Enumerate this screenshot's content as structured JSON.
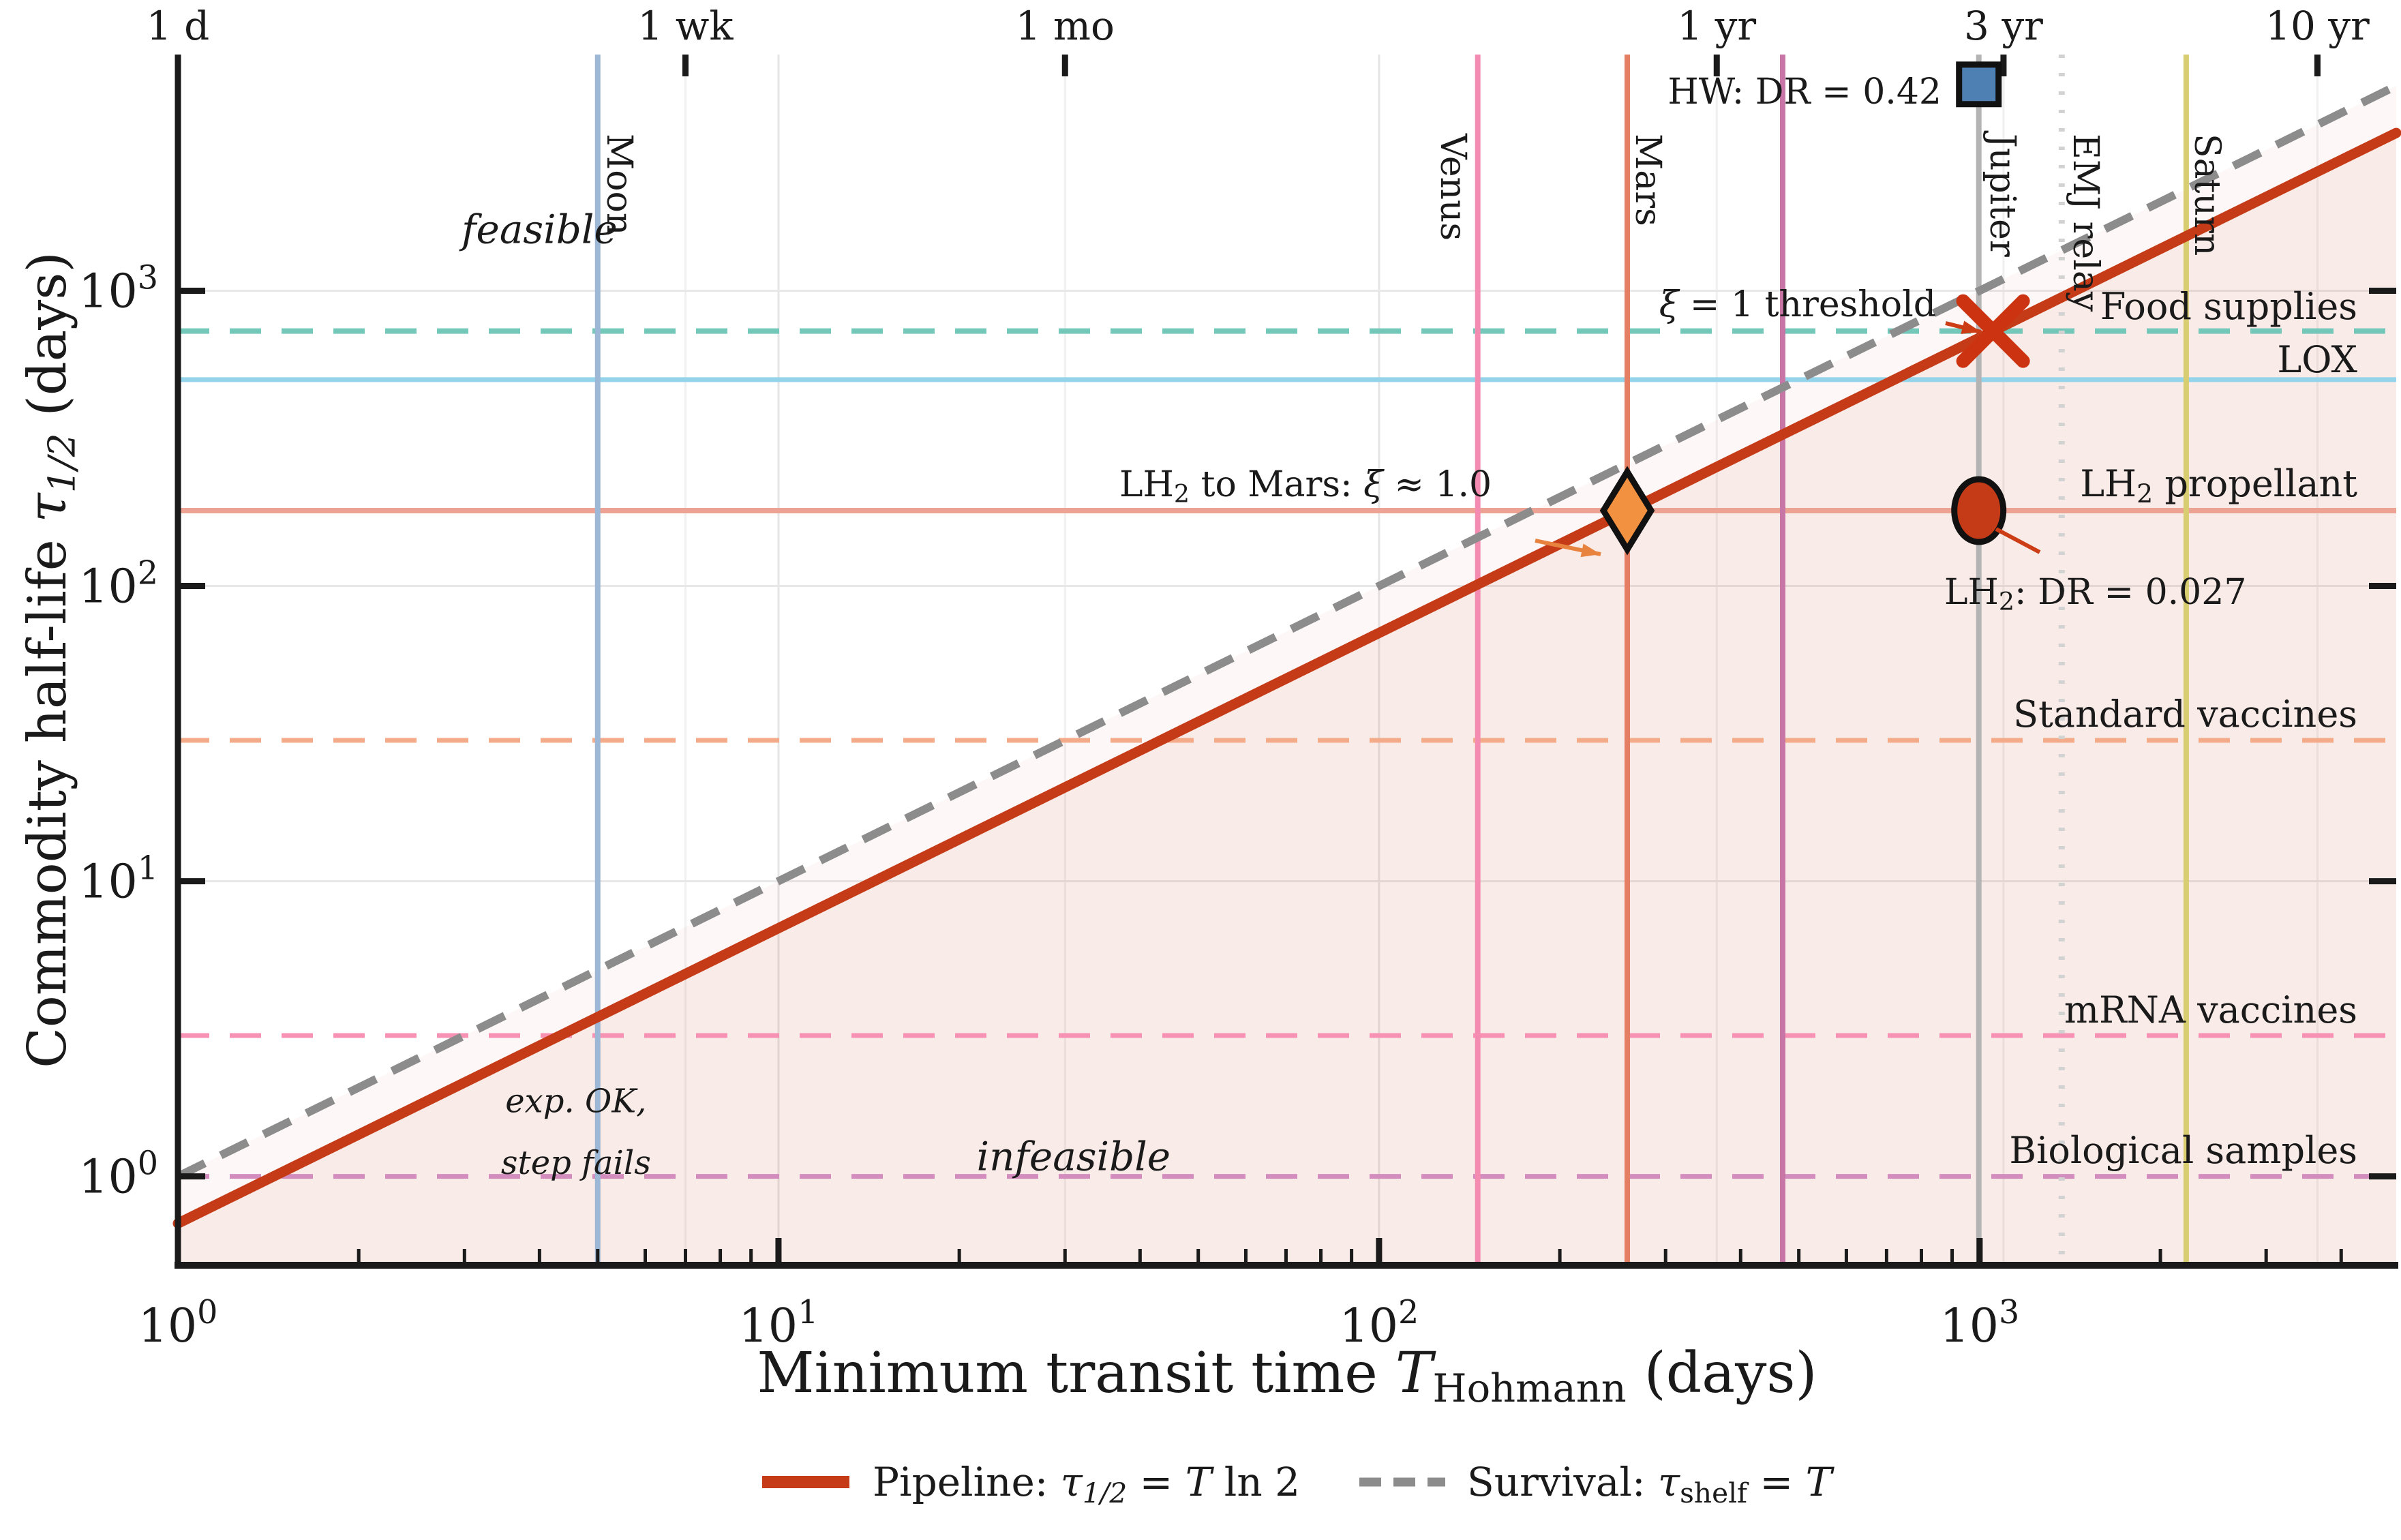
{
  "page": {
    "background": "#ffffff"
  },
  "chart_data": {
    "type": "line",
    "title": "",
    "xlabel_segments": [
      {
        "t": "Minimum transit time "
      },
      {
        "t": "T",
        "i": true
      },
      {
        "t": "Hohmann",
        "sub": true
      },
      {
        "t": " (days)"
      }
    ],
    "ylabel_segments": [
      {
        "t": "Commodity half-life "
      },
      {
        "t": "τ",
        "i": true
      },
      {
        "t": "1/2",
        "sub": true,
        "i": true
      },
      {
        "t": " (days)"
      }
    ],
    "x_axis": {
      "scale": "log",
      "unit": "days",
      "min": 1,
      "max": 4940,
      "tick_exponents": [
        0,
        1,
        2,
        3
      ],
      "minor_ticks": true
    },
    "y_axis": {
      "scale": "log",
      "unit": "days",
      "min": 0.5,
      "max": 6310,
      "tick_exponents": [
        0,
        1,
        2,
        3
      ],
      "minor_ticks": false
    },
    "top_axis_ticks": [
      {
        "label": "1 d",
        "days": 1
      },
      {
        "label": "1 wk",
        "days": 7
      },
      {
        "label": "1 mo",
        "days": 30
      },
      {
        "label": "1 yr",
        "days": 365
      },
      {
        "label": "3 yr",
        "days": 1096
      },
      {
        "label": "10 yr",
        "days": 3652
      }
    ],
    "series": [
      {
        "id": "pipeline",
        "relation": "tau_half = T ln 2",
        "color": "#c63b17",
        "style": "solid",
        "legend_segments": [
          {
            "t": "Pipeline: "
          },
          {
            "t": "τ",
            "i": true
          },
          {
            "t": "1/2",
            "sub": true,
            "i": true
          },
          {
            "t": " = "
          },
          {
            "t": "T",
            "i": true
          },
          {
            "t": " ln 2"
          }
        ],
        "points": [
          [
            1,
            0.693
          ],
          [
            4940,
            3424
          ]
        ]
      },
      {
        "id": "survival",
        "relation": "tau_shelf = T",
        "color": "#8c8c8c",
        "style": "dashed",
        "legend_segments": [
          {
            "t": "Survival: "
          },
          {
            "t": "τ",
            "i": true
          },
          {
            "t": "shelf",
            "sub": true
          },
          {
            "t": " = "
          },
          {
            "t": "T",
            "i": true
          }
        ],
        "points": [
          [
            1,
            1
          ],
          [
            4940,
            4940
          ]
        ]
      }
    ],
    "regions": [
      {
        "id": "infeasible-region",
        "label": "infeasible",
        "color": "#cf5a3a",
        "opacity": 0.12
      },
      {
        "id": "marginal-band",
        "label": "exp. OK, step fails",
        "color": "#cf5a3a",
        "opacity": 0.045
      }
    ],
    "vertical_lines": [
      {
        "id": "moon",
        "label": "Moon",
        "days": 5,
        "line_color": "#9db8d6",
        "text_color": "#4f80b0",
        "style": "solid"
      },
      {
        "id": "venus",
        "label": "Venus",
        "days": 146,
        "line_color": "#f48cb1",
        "text_color": "#ee5490",
        "style": "solid"
      },
      {
        "id": "mars",
        "label": "Mars",
        "days": 259,
        "line_color": "#e57f63",
        "text_color": "#d04a24",
        "style": "solid"
      },
      {
        "id": "unlabeled",
        "label": "",
        "days": 470,
        "line_color": "#c776a6",
        "text_color": "",
        "style": "solid"
      },
      {
        "id": "jupiter",
        "label": "Jupiter",
        "days": 997,
        "line_color": "#b4b4b4",
        "text_color": "#b8b8b8",
        "style": "solid"
      },
      {
        "id": "emj-relay",
        "label": "EMJ relay",
        "days": 1370,
        "line_color": "#d2d2d2",
        "text_color": "#cccccc",
        "style": "dotted"
      },
      {
        "id": "saturn",
        "label": "Saturn",
        "days": 2208,
        "line_color": "#d9cd72",
        "text_color": "#d3c55e",
        "style": "solid"
      }
    ],
    "horizontal_lines": [
      {
        "id": "food-supplies",
        "label": "Food supplies",
        "days": 730,
        "line_color": "#74c8ba",
        "text_color": "#109180",
        "style": "dashed"
      },
      {
        "id": "lox",
        "label": "LOX",
        "days": 500,
        "line_color": "#93d4ea",
        "text_color": "#3ab8ee",
        "style": "solid"
      },
      {
        "id": "lh2-propellant",
        "label_segments": [
          {
            "t": "LH"
          },
          {
            "t": "2",
            "sub": true
          },
          {
            "t": " propellant"
          }
        ],
        "days": 180,
        "line_color": "#eca394",
        "text_color": "#c63b17",
        "style": "solid"
      },
      {
        "id": "standard-vaccines",
        "label": "Standard vaccines",
        "days": 30,
        "line_color": "#f4ab89",
        "text_color": "#e57e3e",
        "style": "dashed"
      },
      {
        "id": "mrna-vaccines",
        "label": "mRNA vaccines",
        "days": 3,
        "line_color": "#f792b5",
        "text_color": "#ea4480",
        "style": "dashed"
      },
      {
        "id": "biological-samples",
        "label": "Biological samples",
        "days": 1,
        "line_color": "#d28cbd",
        "text_color": "#a84285",
        "style": "dashed"
      }
    ],
    "markers": [
      {
        "id": "hw",
        "shape": "square",
        "T_days": 997,
        "tau_days": 5000,
        "fill": "#4e80b4",
        "text_color": "#4e80b4",
        "annotation_segments": "HW: DR = 0.42"
      },
      {
        "id": "xi-threshold",
        "shape": "x",
        "T_days": 1053,
        "tau_days": 730,
        "fill": "#cc3311",
        "text_color": "#cc3d16",
        "annotation_segments": [
          {
            "t": "ξ",
            "i": true
          },
          {
            "t": " = 1 threshold"
          }
        ]
      },
      {
        "id": "lh2-mars",
        "shape": "diamond",
        "T_days": 259,
        "tau_days": 180,
        "fill": "#f29140",
        "text_color": "#e8823f",
        "annotation_segments": [
          {
            "t": "LH"
          },
          {
            "t": "2",
            "sub": true
          },
          {
            "t": " to Mars: "
          },
          {
            "t": "ξ",
            "i": true
          },
          {
            "t": " ≈ 1.0"
          }
        ]
      },
      {
        "id": "lh2-dr",
        "shape": "circle",
        "T_days": 997,
        "tau_days": 180,
        "fill": "#c63b17",
        "text_color": "#cc3d16",
        "annotation_segments": [
          {
            "t": "LH"
          },
          {
            "t": "2",
            "sub": true
          },
          {
            "t": ": DR = 0.027"
          }
        ]
      }
    ],
    "zone_labels": [
      {
        "id": "feasible",
        "text": "feasible",
        "T_days": 4.0,
        "tau_days": 1450,
        "color": "#57c0ad",
        "size": 58
      },
      {
        "id": "infeasible",
        "text": "infeasible",
        "T_days": 31,
        "tau_days": 1.05,
        "color": "#dd7150",
        "size": 58
      },
      {
        "id": "exp-ok-1",
        "text": "exp. OK,",
        "T_days": 4.6,
        "tau_days": 1.65,
        "color": "#f0a584",
        "size": 48
      },
      {
        "id": "exp-ok-2",
        "text": "step fails",
        "T_days": 4.6,
        "tau_days": 1.02,
        "color": "#f0a584",
        "size": 48
      }
    ],
    "legend": {
      "position": "bottom-center"
    }
  }
}
